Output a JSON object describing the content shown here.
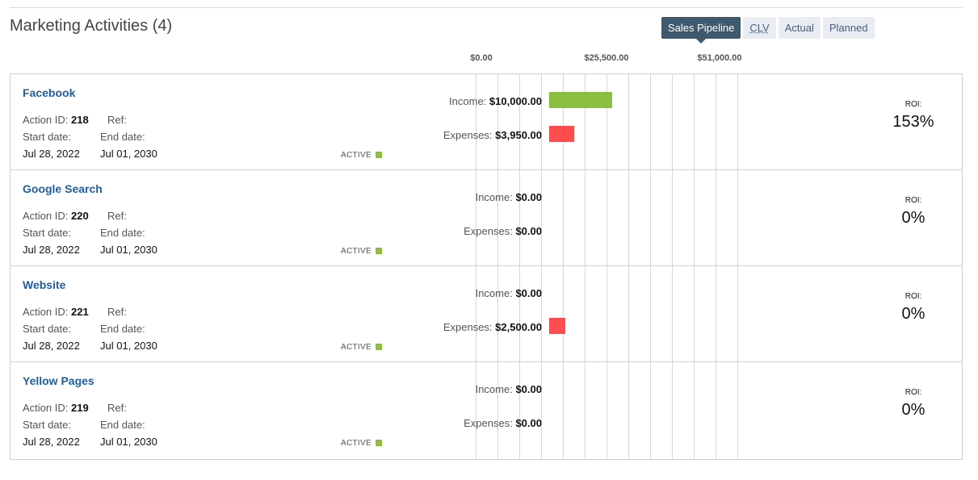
{
  "header": {
    "title": "Marketing Activities (4)",
    "tabs": [
      {
        "label": "Sales Pipeline",
        "active": true
      },
      {
        "label": "CLV",
        "active": false
      },
      {
        "label": "Actual",
        "active": false
      },
      {
        "label": "Planned",
        "active": false
      }
    ]
  },
  "axis": {
    "max": 76500,
    "ticks": [
      "$0.00",
      "$25,500.00",
      "$51,000.00"
    ]
  },
  "labels": {
    "action_id": "Action ID:",
    "ref": "Ref:",
    "start_date": "Start date:",
    "end_date": "End date:",
    "income": "Income:",
    "expenses": "Expenses:",
    "roi": "ROI:"
  },
  "colors": {
    "income": "#8cbf3f",
    "expense": "#ff4d4d",
    "status_active": "#8cbf3f",
    "link": "#1f5fa0"
  },
  "activities": [
    {
      "name": "Facebook",
      "action_id": "218",
      "ref": "",
      "start_date": "Jul 28, 2022",
      "end_date": "Jul 01, 2030",
      "status": "ACTIVE",
      "income": "$10,000.00",
      "income_value": 10000,
      "expenses": "$3,950.00",
      "expenses_value": 3950,
      "roi": "153%"
    },
    {
      "name": "Google Search",
      "action_id": "220",
      "ref": "",
      "start_date": "Jul 28, 2022",
      "end_date": "Jul 01, 2030",
      "status": "ACTIVE",
      "income": "$0.00",
      "income_value": 0,
      "expenses": "$0.00",
      "expenses_value": 0,
      "roi": "0%"
    },
    {
      "name": "Website",
      "action_id": "221",
      "ref": "",
      "start_date": "Jul 28, 2022",
      "end_date": "Jul 01, 2030",
      "status": "ACTIVE",
      "income": "$0.00",
      "income_value": 0,
      "expenses": "$2,500.00",
      "expenses_value": 2500,
      "roi": "0%"
    },
    {
      "name": "Yellow Pages",
      "action_id": "219",
      "ref": "",
      "start_date": "Jul 28, 2022",
      "end_date": "Jul 01, 2030",
      "status": "ACTIVE",
      "income": "$0.00",
      "income_value": 0,
      "expenses": "$0.00",
      "expenses_value": 0,
      "roi": "0%"
    }
  ]
}
